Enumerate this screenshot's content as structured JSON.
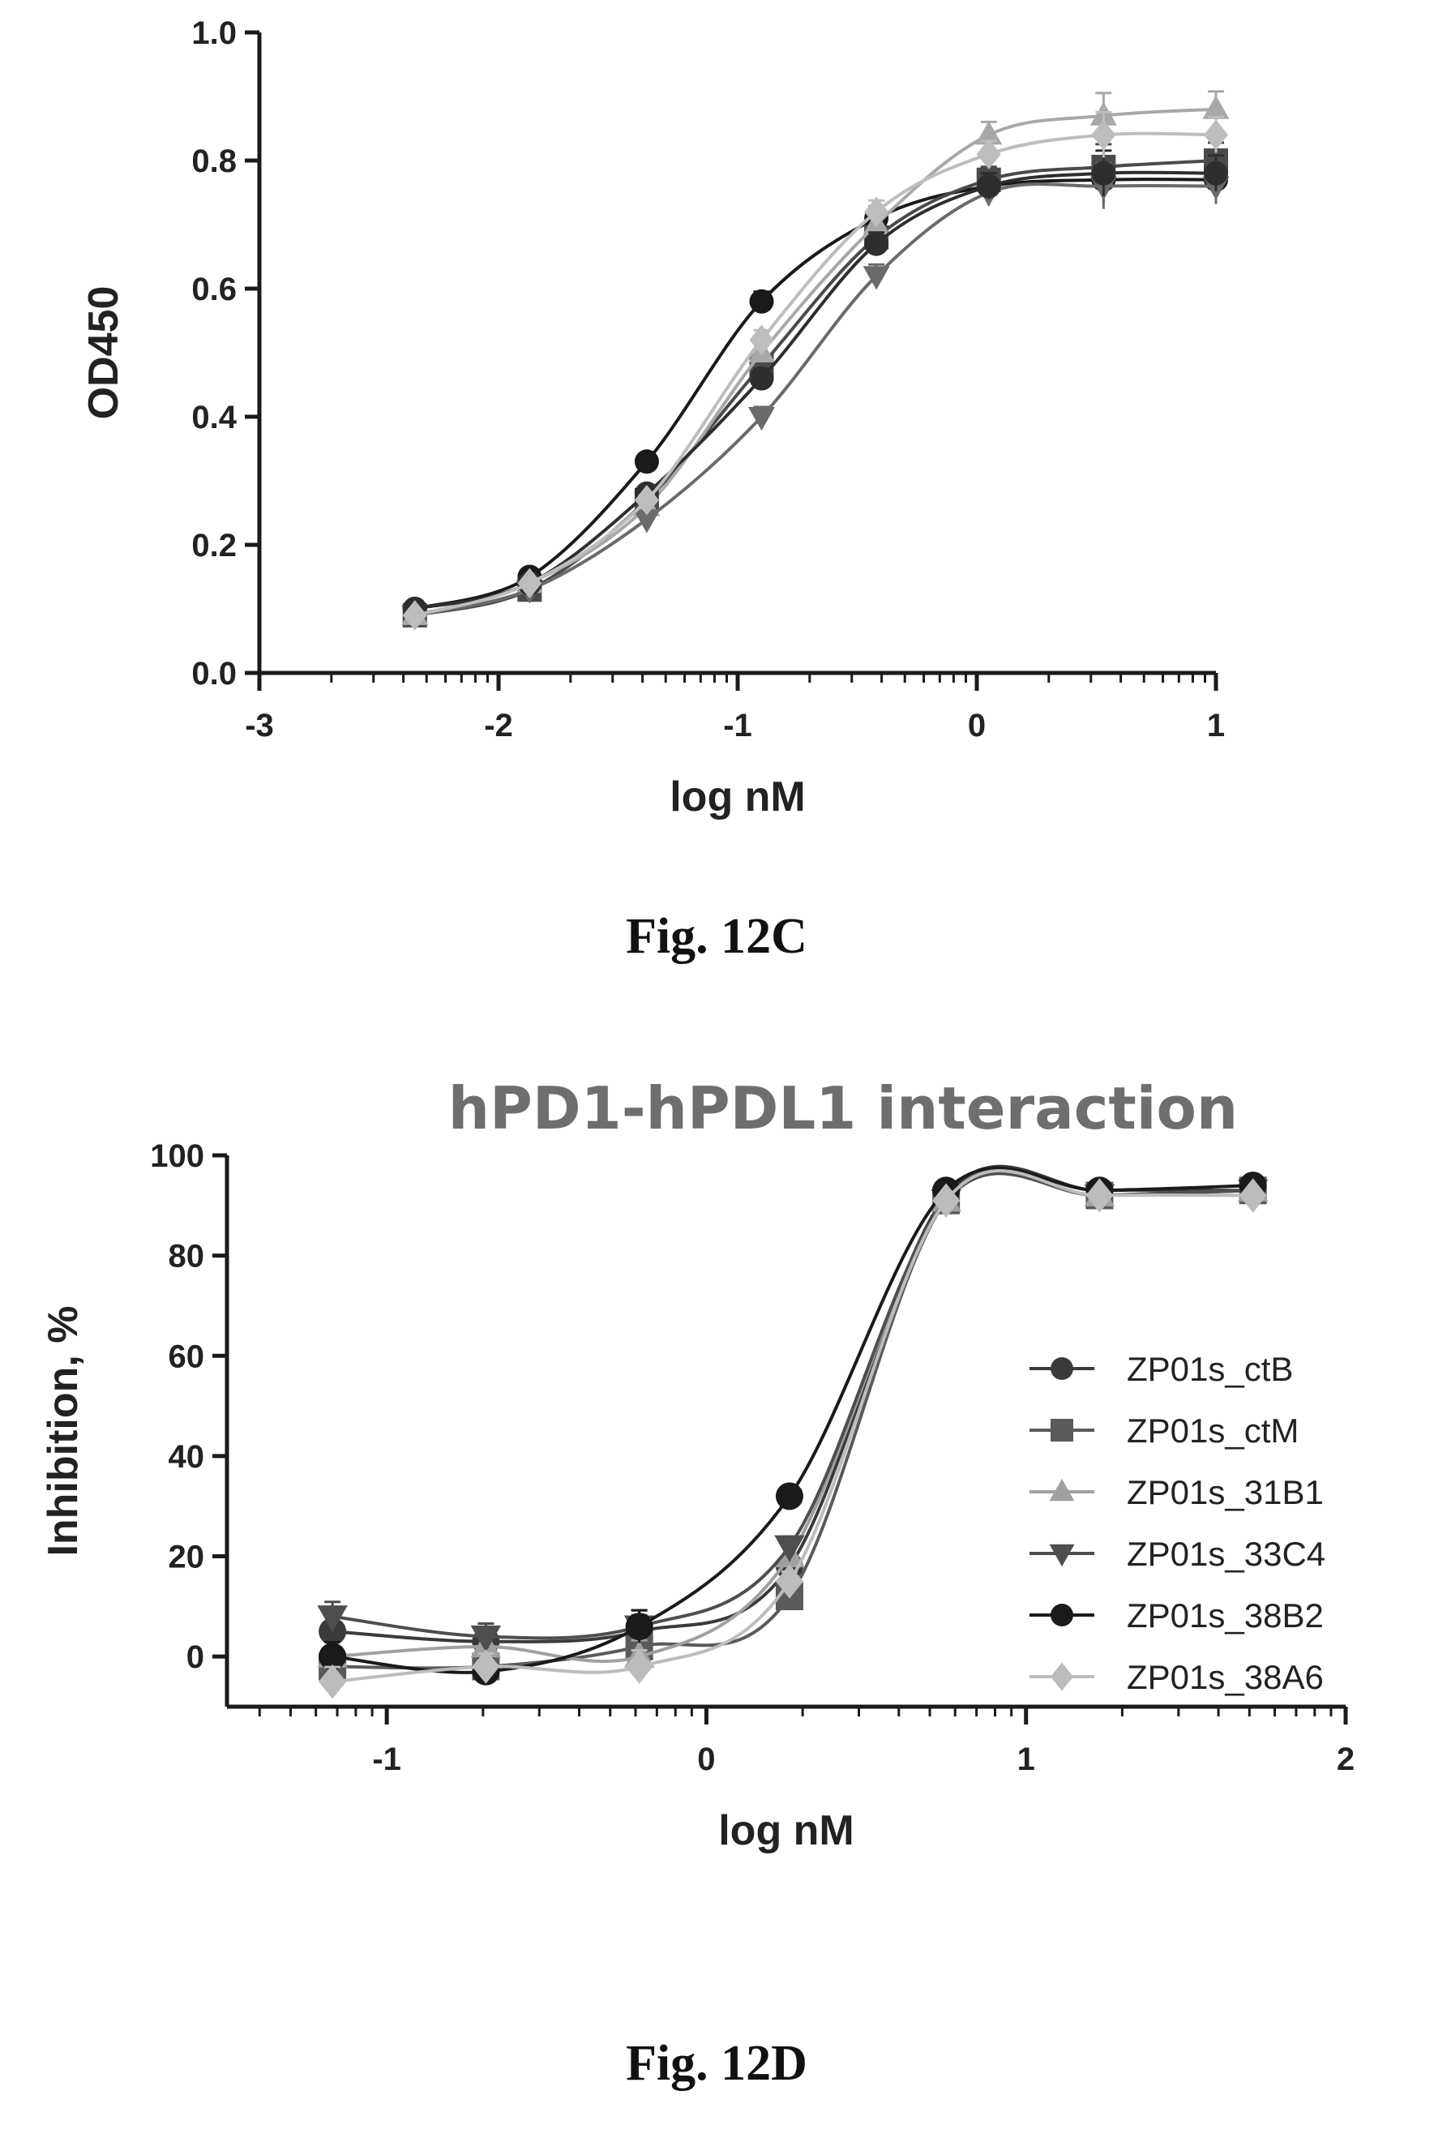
{
  "chart_data": [
    {
      "type": "scatter",
      "title": "",
      "xlabel": "log nM",
      "ylabel": "OD450",
      "caption": "Fig. 12C",
      "xlim": [
        -3,
        1
      ],
      "ylim": [
        0.0,
        1.0
      ],
      "xticks": [
        -3,
        -2,
        -1,
        0,
        1
      ],
      "xtick_labels": [
        "-3",
        "-2",
        "-1",
        "0",
        "1"
      ],
      "yticks": [
        0.0,
        0.2,
        0.4,
        0.6,
        0.8,
        1.0
      ],
      "ytick_labels": [
        "0.0",
        "0.2",
        "0.4",
        "0.6",
        "0.8",
        "1.0"
      ],
      "x": [
        -2.35,
        -1.87,
        -1.38,
        -0.9,
        -0.42,
        0.05,
        0.53,
        1.0
      ],
      "series": [
        {
          "color": "#1a1a1a",
          "marker": "circle",
          "values": [
            0.1,
            0.15,
            0.33,
            0.58,
            0.71,
            0.76,
            0.77,
            0.77
          ]
        },
        {
          "color": "#4a4a4a",
          "marker": "square",
          "values": [
            0.09,
            0.13,
            0.27,
            0.48,
            0.68,
            0.77,
            0.79,
            0.8
          ]
        },
        {
          "color": "#a8a8a8",
          "marker": "triangle",
          "values": [
            0.09,
            0.14,
            0.26,
            0.5,
            0.7,
            0.84,
            0.87,
            0.88
          ]
        },
        {
          "color": "#6a6a6a",
          "marker": "triangle-down",
          "values": [
            0.09,
            0.13,
            0.24,
            0.4,
            0.62,
            0.75,
            0.76,
            0.76
          ]
        },
        {
          "color": "#2e2e2e",
          "marker": "circle",
          "values": [
            0.1,
            0.14,
            0.28,
            0.46,
            0.67,
            0.76,
            0.78,
            0.78
          ]
        },
        {
          "color": "#bdbdbd",
          "marker": "diamond",
          "values": [
            0.09,
            0.14,
            0.27,
            0.52,
            0.72,
            0.81,
            0.84,
            0.84
          ]
        }
      ]
    },
    {
      "type": "scatter",
      "title": "hPD1-hPDL1 interaction",
      "xlabel": "log nM",
      "ylabel": "Inhibition, %",
      "caption": "Fig. 12D",
      "xlim": [
        -1.5,
        2
      ],
      "ylim": [
        -10,
        100
      ],
      "xticks": [
        -1,
        0,
        1,
        2
      ],
      "xtick_labels": [
        "-1",
        "0",
        "1",
        "2"
      ],
      "yticks": [
        0,
        20,
        40,
        60,
        80,
        100
      ],
      "ytick_labels": [
        "0",
        "20",
        "40",
        "60",
        "80",
        "100"
      ],
      "x": [
        -1.17,
        -0.69,
        -0.21,
        0.26,
        0.75,
        1.23,
        1.71
      ],
      "legend": "right",
      "series": [
        {
          "name": "ZP01s_ctB",
          "color": "#3a3a3a",
          "marker": "circle",
          "values": [
            5,
            3,
            5,
            18,
            92,
            93,
            93
          ]
        },
        {
          "name": "ZP01s_ctM",
          "color": "#5a5a5a",
          "marker": "square",
          "values": [
            -2,
            -2,
            2,
            12,
            91,
            92,
            93
          ]
        },
        {
          "name": "ZP01s_31B1",
          "color": "#a0a0a0",
          "marker": "triangle",
          "values": [
            0,
            2,
            0,
            20,
            91,
            92,
            93
          ]
        },
        {
          "name": "ZP01s_33C4",
          "color": "#4e4e4e",
          "marker": "triangle-down",
          "values": [
            8,
            4,
            6,
            22,
            91,
            92,
            93
          ]
        },
        {
          "name": "ZP01s_38B2",
          "color": "#1a1a1a",
          "marker": "circle",
          "values": [
            0,
            -3,
            6,
            32,
            93,
            93,
            94
          ]
        },
        {
          "name": "ZP01s_38A6",
          "color": "#bcbcbc",
          "marker": "diamond",
          "values": [
            -5,
            -2,
            -2,
            15,
            91,
            92,
            92
          ]
        }
      ]
    }
  ]
}
